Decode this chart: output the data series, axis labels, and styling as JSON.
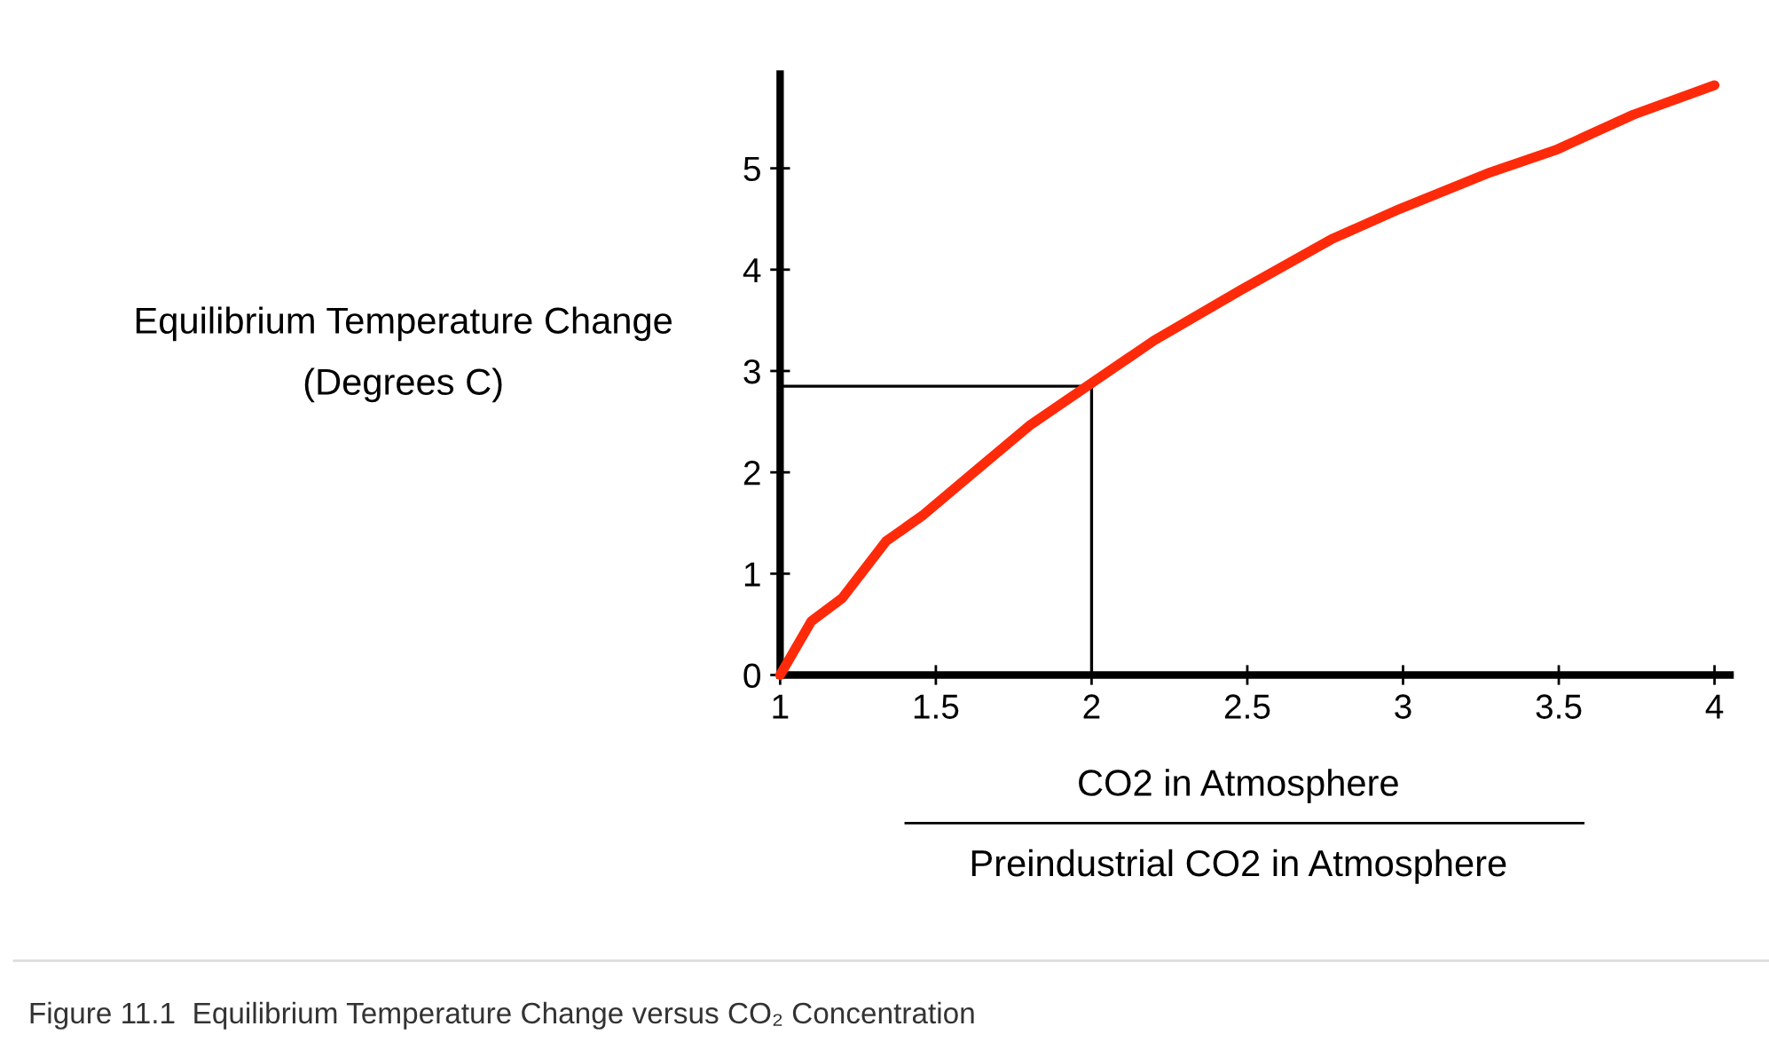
{
  "chart_data": {
    "type": "line",
    "xlabel": "CO2 in Atmosphere\nPreindustrial CO2 in Atmosphere",
    "ylabel": "Equilibrium Temperature Change\n(Degrees C)",
    "annotations": [
      "Figure 11.1  Equilibrium Temperature Change versus CO₂ Concentration"
    ],
    "series": [
      {
        "color": "#ff2a0a",
        "x": [
          1,
          1.1,
          1.2,
          1.34,
          1.46,
          1.63,
          1.8,
          2.0,
          2.2,
          2.48,
          2.77,
          2.99,
          3.28,
          3.49,
          3.74,
          4.0
        ],
        "values": [
          0,
          0.53,
          0.76,
          1.32,
          1.58,
          2.02,
          2.46,
          2.88,
          3.3,
          3.8,
          4.3,
          4.6,
          4.96,
          5.18,
          5.53,
          5.82
        ]
      }
    ],
    "xlim": [
      1,
      4.05
    ],
    "ylim": [
      0,
      5.93
    ],
    "xticks": [
      1,
      1.5,
      2,
      2.5,
      3,
      3.5,
      4
    ],
    "yticks": [
      0,
      1,
      2,
      3,
      4,
      5
    ],
    "ref_lines": [
      {
        "axis": "x",
        "value": 2,
        "color": "#000000"
      },
      {
        "axis": "y",
        "value": 2.85,
        "color": "#000000"
      }
    ],
    "grid": false,
    "legend": false
  }
}
